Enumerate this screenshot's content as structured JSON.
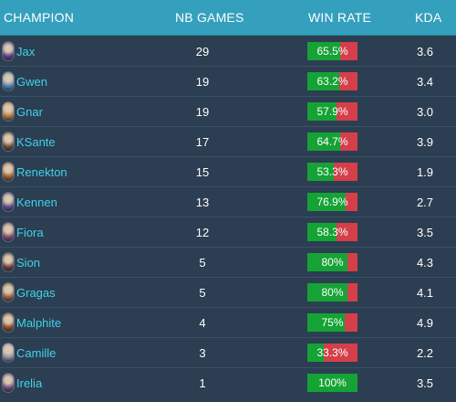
{
  "header": {
    "champion": "CHAMPION",
    "games": "NB GAMES",
    "winrate": "WIN RATE",
    "kda": "KDA"
  },
  "colors": {
    "win": "#15a335",
    "loss": "#d43f4a",
    "name": "#3fd2ec",
    "header_bg": "#34a0bd",
    "row_bg": "#2c3e51"
  },
  "rows": [
    {
      "name": "Jax",
      "games": "29",
      "winrate": "65.5%",
      "win_fraction": 0.655,
      "kda": "3.6",
      "avatar_color": "#5b3f86"
    },
    {
      "name": "Gwen",
      "games": "19",
      "winrate": "63.2%",
      "win_fraction": 0.632,
      "kda": "3.4",
      "avatar_color": "#4a7fb0"
    },
    {
      "name": "Gnar",
      "games": "19",
      "winrate": "57.9%",
      "win_fraction": 0.579,
      "kda": "3.0",
      "avatar_color": "#b0703a"
    },
    {
      "name": "KSante",
      "games": "17",
      "winrate": "64.7%",
      "win_fraction": 0.647,
      "kda": "3.9",
      "avatar_color": "#6a4b3a"
    },
    {
      "name": "Renekton",
      "games": "15",
      "winrate": "53.3%",
      "win_fraction": 0.533,
      "kda": "1.9",
      "avatar_color": "#9a5a2a"
    },
    {
      "name": "Kennen",
      "games": "13",
      "winrate": "76.9%",
      "win_fraction": 0.769,
      "kda": "2.7",
      "avatar_color": "#5a4a8a"
    },
    {
      "name": "Fiora",
      "games": "12",
      "winrate": "58.3%",
      "win_fraction": 0.583,
      "kda": "3.5",
      "avatar_color": "#7a4a6a"
    },
    {
      "name": "Sion",
      "games": "5",
      "winrate": "80%",
      "win_fraction": 0.8,
      "kda": "4.3",
      "avatar_color": "#6a3a3a"
    },
    {
      "name": "Gragas",
      "games": "5",
      "winrate": "80%",
      "win_fraction": 0.8,
      "kda": "4.1",
      "avatar_color": "#8a5a3a"
    },
    {
      "name": "Malphite",
      "games": "4",
      "winrate": "75%",
      "win_fraction": 0.75,
      "kda": "4.9",
      "avatar_color": "#8a4a2a"
    },
    {
      "name": "Camille",
      "games": "3",
      "winrate": "33.3%",
      "win_fraction": 0.333,
      "kda": "2.2",
      "avatar_color": "#8a8a9a"
    },
    {
      "name": "Irelia",
      "games": "1",
      "winrate": "100%",
      "win_fraction": 1.0,
      "kda": "3.5",
      "avatar_color": "#6a4a7a"
    }
  ]
}
